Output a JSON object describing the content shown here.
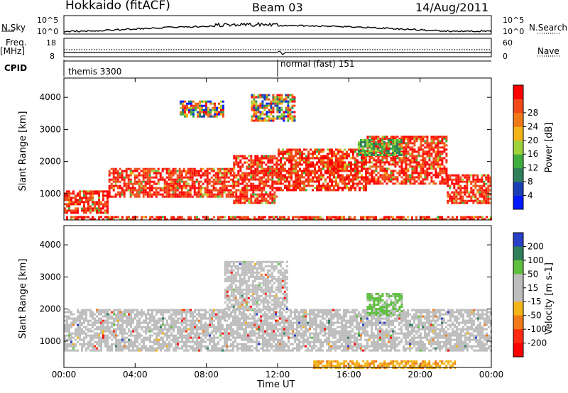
{
  "header": {
    "station": "Hokkaido (fitACF)",
    "beam": "Beam 03",
    "date": "14/Aug/2011"
  },
  "top_panels": {
    "nsky_label": "N.Sky",
    "nsky_ticks": [
      "10^5",
      "10^0"
    ],
    "nsearch_label": "N.Search",
    "nsearch_ticks": [
      "10^5",
      "10^0"
    ],
    "freq_label": "Freq.",
    "freq_unit": "[MHz]",
    "freq_ticks": [
      "18",
      "8"
    ],
    "nave_label": "Nave",
    "nave_ticks": [
      "60",
      "0"
    ],
    "cpid_label": "CPID",
    "cpid_modes": [
      {
        "label": "themis 3300",
        "start_hour": 0.0
      },
      {
        "label": "normal (fast) 151",
        "start_hour": 12.0
      }
    ]
  },
  "chart_data": [
    {
      "type": "heatmap",
      "name": "power",
      "ylabel": "Slant Range [km]",
      "yticks": [
        "1000",
        "2000",
        "3000",
        "4000"
      ],
      "ylim": [
        180,
        4600
      ],
      "xlim": [
        0,
        24
      ],
      "colorbar": {
        "label": "Power [dB]",
        "ticks": [
          "4",
          "8",
          "12",
          "16",
          "20",
          "24",
          "28"
        ],
        "colors": [
          "#0019ff",
          "#1a3fb4",
          "#2e7f5a",
          "#3fae3f",
          "#9fd23a",
          "#f2b418",
          "#f07a18",
          "#f04a18",
          "#ff0000"
        ]
      },
      "echo_regions": [
        {
          "x0": 0.0,
          "x1": 2.5,
          "y0": 400,
          "y1": 1100,
          "level": "high"
        },
        {
          "x0": 2.5,
          "x1": 9.5,
          "y0": 900,
          "y1": 1800,
          "level": "high"
        },
        {
          "x0": 9.5,
          "x1": 12.0,
          "y0": 700,
          "y1": 2200,
          "level": "high"
        },
        {
          "x0": 12.0,
          "x1": 17.0,
          "y0": 1100,
          "y1": 2400,
          "level": "high"
        },
        {
          "x0": 17.0,
          "x1": 21.5,
          "y0": 1300,
          "y1": 2800,
          "level": "high"
        },
        {
          "x0": 21.5,
          "x1": 24.0,
          "y0": 700,
          "y1": 1600,
          "level": "high"
        },
        {
          "x0": 0.0,
          "x1": 24.0,
          "y0": 180,
          "y1": 300,
          "level": "high"
        },
        {
          "x0": 6.5,
          "x1": 9.0,
          "y0": 3400,
          "y1": 3900,
          "level": "mixed"
        },
        {
          "x0": 10.5,
          "x1": 13.0,
          "y0": 3300,
          "y1": 4100,
          "level": "mixed"
        },
        {
          "x0": 16.5,
          "x1": 19.0,
          "y0": 2200,
          "y1": 2700,
          "level": "low"
        }
      ]
    },
    {
      "type": "heatmap",
      "name": "velocity",
      "ylabel": "Slant Range [km]",
      "yticks": [
        "1000",
        "2000",
        "3000",
        "4000"
      ],
      "ylim": [
        180,
        4600
      ],
      "xlim": [
        0,
        24
      ],
      "xticks": [
        "00:00",
        "04:00",
        "08:00",
        "12:00",
        "16:00",
        "20:00",
        "00:00"
      ],
      "xlabel": "Time UT",
      "colorbar": {
        "label": "Velocity [m s-1]",
        "ticks": [
          "200",
          "100",
          "50",
          "15",
          "-15",
          "-50",
          "-100",
          "-200"
        ],
        "colors": [
          "#2a3fc8",
          "#2e7f5a",
          "#5fc040",
          "#bdbdbd",
          "#bdbdbd",
          "#f2b418",
          "#f07a18",
          "#ff2a10",
          "#ff0000"
        ]
      },
      "echo_regions": [
        {
          "x0": 0.0,
          "x1": 24.0,
          "y0": 700,
          "y1": 2000,
          "level": "ground"
        },
        {
          "x0": 9.0,
          "x1": 12.5,
          "y0": 2000,
          "y1": 3500,
          "level": "ground"
        },
        {
          "x0": 17.0,
          "x1": 19.0,
          "y0": 1800,
          "y1": 2500,
          "level": "positive"
        },
        {
          "x0": 14.0,
          "x1": 22.0,
          "y0": 180,
          "y1": 400,
          "level": "negative"
        }
      ]
    }
  ]
}
